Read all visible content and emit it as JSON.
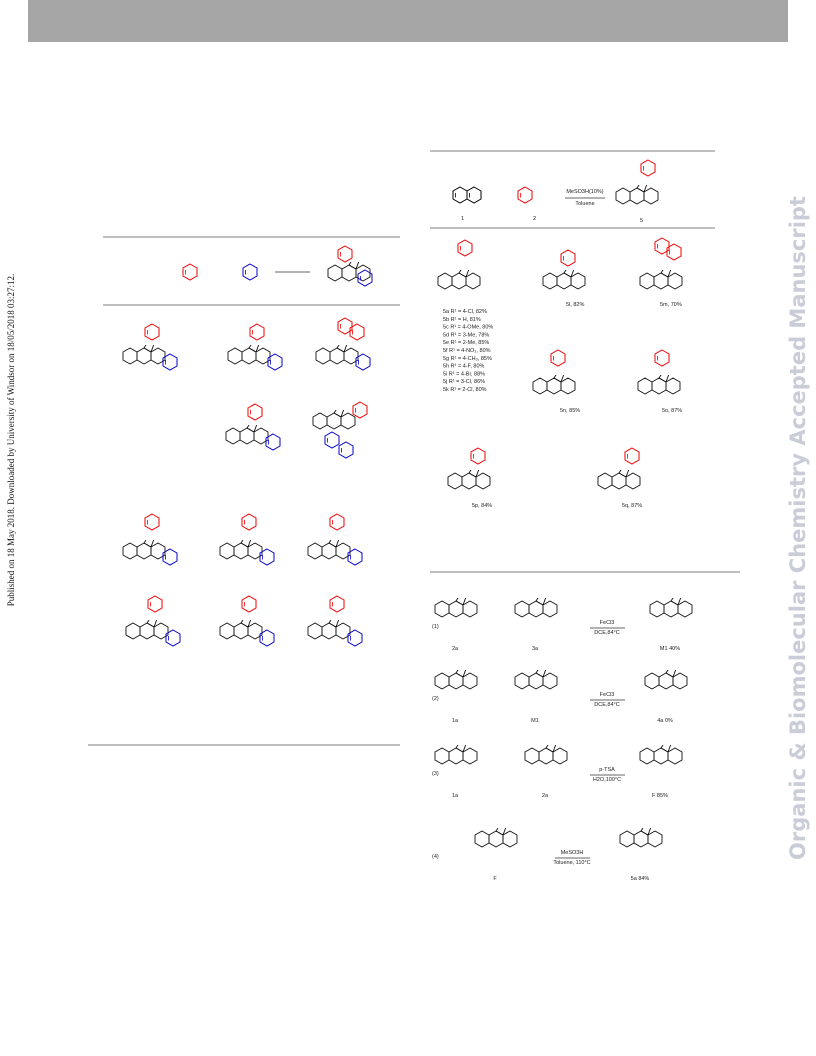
{
  "sidebar": {
    "published": "Published on 18 May 2018. Downloaded by University of Windsor on 18/05/2018 03:27:12.",
    "watermark": "Organic & Biomolecular Chemistry Accepted Manuscript"
  },
  "scheme_top": {
    "labels": [
      "1",
      "2",
      "5"
    ],
    "conditions": [
      "MeSO3H(10%)",
      "Toluene"
    ]
  },
  "products": {
    "list": [
      "5a R¹ = 4-Cl, 82%",
      "5b R¹ = H, 81%",
      "5c R¹ = 4-OMe, 80%",
      "5d R¹ = 3-Me, 78%",
      "5e R¹ = 2-Me, 85%",
      "5f R¹ = 4-NO₂, 80%",
      "5g R¹ = 4-CH₃, 85%",
      "5h R¹ = 4-F, 80%",
      "5i R¹ = 4-Br, 88%",
      "5j R¹ = 3-Cl, 86%",
      "5k R¹ = 2-Cl, 80%"
    ],
    "named": [
      "5l, 82%",
      "5m, 70%",
      "5n, 85%",
      "5o, 87%",
      "5p, 84%",
      "5q, 87%"
    ]
  },
  "mechanism": {
    "steps": [
      {
        "number": "(1)",
        "labels": [
          "2a",
          "3a",
          "M1 40%"
        ],
        "conditions": [
          "FeCl3",
          "DCE,84°C"
        ]
      },
      {
        "number": "(2)",
        "labels": [
          "1a",
          "M1",
          "4a 0%"
        ],
        "conditions": [
          "FeCl3",
          "DCE,84°C"
        ]
      },
      {
        "number": "(3)",
        "labels": [
          "1a",
          "2a",
          "F 85%"
        ],
        "conditions": [
          "p-TSA",
          "H2O,100°C"
        ]
      },
      {
        "number": "(4)",
        "labels": [
          "F",
          "5a 84%"
        ],
        "conditions": [
          "MeSO3H",
          "Toluene, 110°C"
        ]
      }
    ]
  }
}
